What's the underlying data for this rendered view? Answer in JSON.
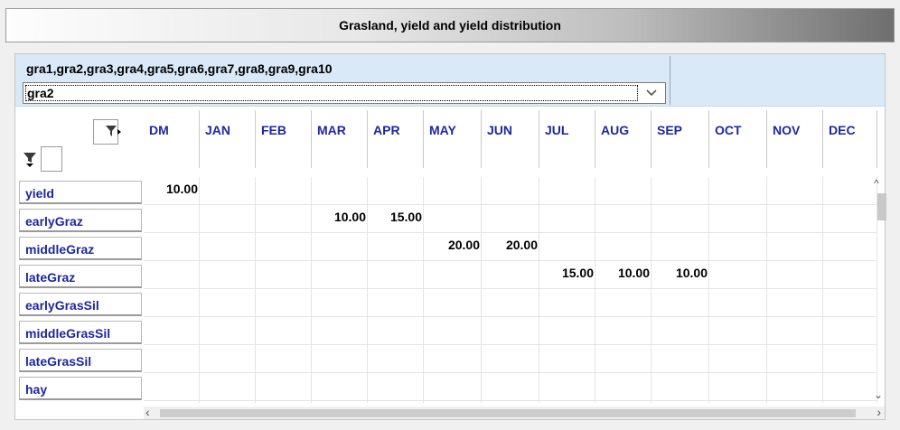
{
  "window": {
    "title": "Grasland, yield and yield distribution"
  },
  "selector": {
    "caption": "gra1,gra2,gra3,gra4,gra5,gra6,gra7,gra8,gra9,gra10",
    "selected": "gra2"
  },
  "columns": [
    "DM",
    "JAN",
    "FEB",
    "MAR",
    "APR",
    "MAY",
    "JUN",
    "JUL",
    "AUG",
    "SEP",
    "OCT",
    "NOV",
    "DEC"
  ],
  "rows": [
    {
      "label": "yield",
      "values": [
        "10.00",
        "",
        "",
        "",
        "",
        "",
        "",
        "",
        "",
        "",
        "",
        "",
        ""
      ]
    },
    {
      "label": "earlyGraz",
      "values": [
        "",
        "",
        "",
        "10.00",
        "15.00",
        "",
        "",
        "",
        "",
        "",
        "",
        "",
        ""
      ]
    },
    {
      "label": "middleGraz",
      "values": [
        "",
        "",
        "",
        "",
        "",
        "20.00",
        "20.00",
        "",
        "",
        "",
        "",
        "",
        ""
      ]
    },
    {
      "label": "lateGraz",
      "values": [
        "",
        "",
        "",
        "",
        "",
        "",
        "",
        "15.00",
        "10.00",
        "10.00",
        "",
        "",
        ""
      ]
    },
    {
      "label": "earlyGrasSil",
      "values": [
        "",
        "",
        "",
        "",
        "",
        "",
        "",
        "",
        "",
        "",
        "",
        "",
        ""
      ]
    },
    {
      "label": "middleGrasSil",
      "values": [
        "",
        "",
        "",
        "",
        "",
        "",
        "",
        "",
        "",
        "",
        "",
        "",
        ""
      ]
    },
    {
      "label": "lateGrasSil",
      "values": [
        "",
        "",
        "",
        "",
        "",
        "",
        "",
        "",
        "",
        "",
        "",
        "",
        ""
      ]
    },
    {
      "label": "hay",
      "values": [
        "",
        "",
        "",
        "",
        "",
        "",
        "",
        "",
        "",
        "",
        "",
        "",
        ""
      ]
    }
  ],
  "icons": {
    "column_filter": "funnel-icon",
    "row_filter": "funnel-icon",
    "dropdown": "chevron-down-icon",
    "scroll_up": "chevron-up-icon",
    "scroll_down": "chevron-down-icon",
    "scroll_left": "chevron-left-icon",
    "scroll_right": "chevron-right-icon"
  },
  "colors": {
    "header_text": "#1d27a3",
    "selector_bg": "#d9e9f8",
    "grid_line": "#e4e4e4"
  }
}
